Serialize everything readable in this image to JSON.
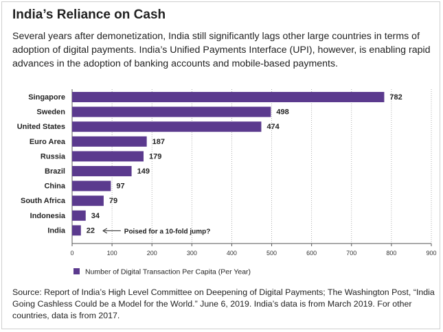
{
  "title": "India’s Reliance on Cash",
  "subtitle": "Several years after demonetization, India still significantly lags other large countries in terms of adoption of digital payments. India’s Unified Payments Interface (UPI), however, is enabling rapid advances in the adoption of banking accounts and mobile-based payments.",
  "source": "Source: Report of India’s High Level Committee on Deepening of Digital Payments; The Washington Post, “India Going Cashless Could be a Model for the World.” June 6, 2019. India’s data is from March 2019. For other countries, data is from 2017.",
  "colors": {
    "bar": "#5b3a8e",
    "axis": "#555555",
    "grid": "#999999"
  },
  "chart_data": {
    "type": "bar",
    "orientation": "horizontal",
    "categories": [
      "Singapore",
      "Sweden",
      "United States",
      "Euro Area",
      "Russia",
      "Brazil",
      "China",
      "South Africa",
      "Indonesia",
      "India"
    ],
    "series": [
      {
        "name": "Number of Digital Transaction Per Capita (Per Year)",
        "values": [
          782,
          498,
          474,
          187,
          179,
          149,
          97,
          79,
          34,
          22
        ]
      }
    ],
    "xlim": [
      0,
      900
    ],
    "xticks": [
      0,
      100,
      200,
      300,
      400,
      500,
      600,
      700,
      800,
      900
    ],
    "grid": "vertical-dotted",
    "legend": "bottom-left",
    "annotations": [
      {
        "category": "India",
        "text": "Poised for a 10-fold jump?"
      }
    ]
  }
}
